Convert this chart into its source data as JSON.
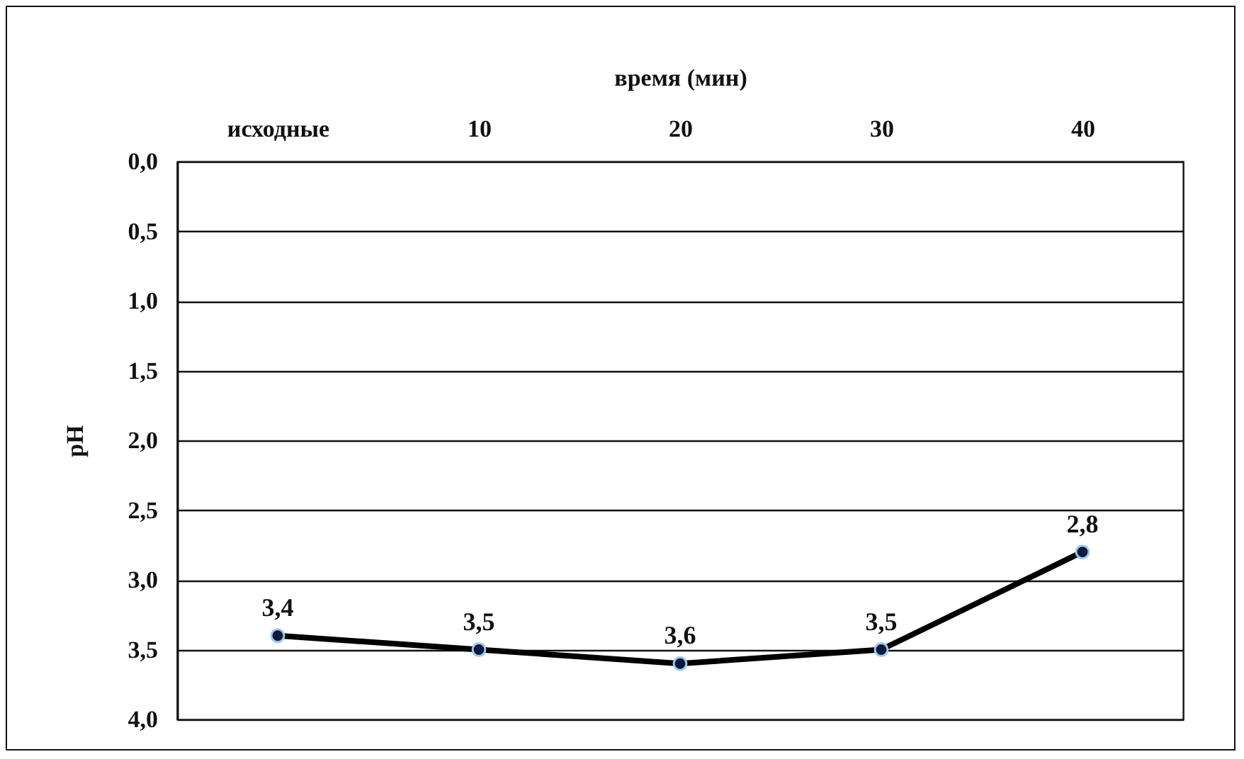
{
  "chart_data": {
    "type": "line",
    "xlabel": "время (мин)",
    "ylabel": "pH",
    "categories": [
      "исходные",
      "10",
      "20",
      "30",
      "40"
    ],
    "series": [
      {
        "color": "#0a1a3a",
        "values": [
          3.4,
          3.5,
          3.6,
          3.5,
          2.8
        ],
        "value_labels": [
          "3,4",
          "3,5",
          "3,6",
          "3,5",
          "2,8"
        ]
      }
    ],
    "ylim": [
      4.0,
      0.0
    ],
    "yticks": [
      {
        "value": 0,
        "label": "0,0"
      },
      {
        "value": 0.5,
        "label": "0,5"
      },
      {
        "value": 1,
        "label": "1,0"
      },
      {
        "value": 1.5,
        "label": "1,5"
      },
      {
        "value": 2,
        "label": "2,0"
      },
      {
        "value": 2.5,
        "label": "2,5"
      },
      {
        "value": 3,
        "label": "3,0"
      },
      {
        "value": 3.5,
        "label": "3,5"
      },
      {
        "value": 4,
        "label": "4,0"
      }
    ],
    "grid": "y",
    "marker": "circle",
    "line_style": "solid",
    "legend": false
  }
}
